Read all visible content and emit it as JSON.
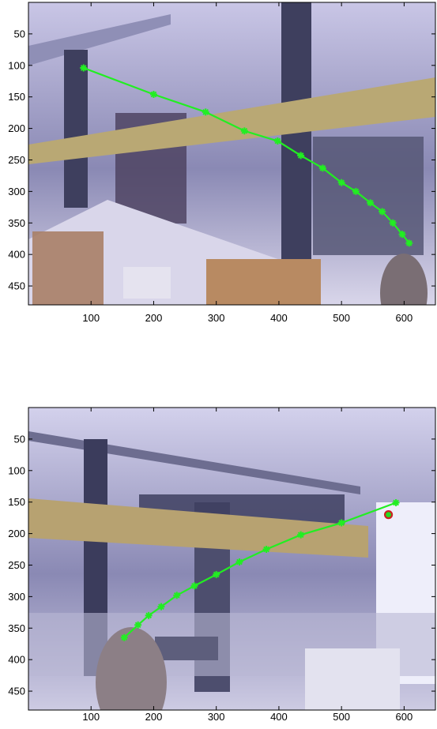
{
  "chart_data": [
    {
      "type": "line",
      "xlim": [
        0,
        650
      ],
      "ylim": [
        480,
        0
      ],
      "x_ticks": [
        100,
        200,
        300,
        400,
        500,
        600
      ],
      "y_ticks": [
        50,
        100,
        150,
        200,
        250,
        300,
        350,
        400,
        450
      ],
      "grid": false,
      "series": [
        {
          "color": "#22ee22",
          "marker": "asterisk",
          "x": [
            88,
            200,
            283,
            345,
            398,
            435,
            470,
            500,
            523,
            546,
            565,
            582,
            597,
            608
          ],
          "y": [
            104,
            146,
            174,
            204,
            220,
            243,
            263,
            286,
            300,
            318,
            332,
            350,
            368,
            382
          ]
        }
      ],
      "background_photo": {
        "colors": {
          "sky": "#c9c6e6",
          "beam": "#b9a874",
          "dark": "#3e3f5e",
          "floor": "#d9d6ea"
        }
      }
    },
    {
      "type": "line",
      "xlim": [
        0,
        650
      ],
      "ylim": [
        480,
        0
      ],
      "x_ticks": [
        100,
        200,
        300,
        400,
        500,
        600
      ],
      "y_ticks": [
        50,
        100,
        150,
        200,
        250,
        300,
        350,
        400,
        450
      ],
      "grid": false,
      "series": [
        {
          "color": "#22ee22",
          "marker": "asterisk",
          "x": [
            153,
            175,
            192,
            212,
            237,
            265,
            300,
            337,
            380,
            435,
            500,
            587
          ],
          "y": [
            365,
            345,
            330,
            316,
            298,
            283,
            265,
            245,
            225,
            202,
            183,
            151
          ]
        },
        {
          "color": "#cc2222",
          "marker": "circle",
          "x": [
            575
          ],
          "y": [
            170
          ]
        }
      ],
      "background_photo": {
        "colors": {
          "sky": "#d3d1ec",
          "beam": "#b7a271",
          "dark": "#3b3c5c",
          "floor": "#cdcbe3"
        }
      }
    }
  ]
}
